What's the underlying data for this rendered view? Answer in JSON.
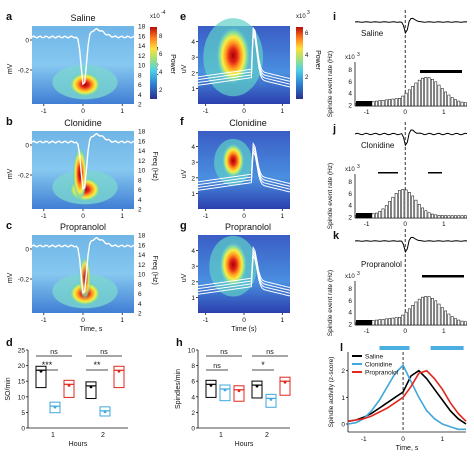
{
  "panels": {
    "a": {
      "letter": "a",
      "title": "Saline"
    },
    "b": {
      "letter": "b",
      "title": "Clonidine"
    },
    "c": {
      "letter": "c",
      "title": "Propranolol"
    },
    "e": {
      "letter": "e",
      "title": "Saline"
    },
    "f": {
      "letter": "f",
      "title": "Clonidine"
    },
    "g": {
      "letter": "g",
      "title": "Propranolol"
    },
    "i": {
      "letter": "i",
      "title": "Saline"
    },
    "j": {
      "letter": "j",
      "title": "Clonidine"
    },
    "k": {
      "letter": "k",
      "title": "Propranolol"
    },
    "d": {
      "letter": "d"
    },
    "h": {
      "letter": "h"
    },
    "l": {
      "letter": "l"
    }
  },
  "labels": {
    "mv": "mV",
    "uv": "uV",
    "freq": "Freq (Hz)",
    "power": "Power",
    "power_exp_a": "x10",
    "power_exp_sup_a": "-4",
    "power_exp_e": "x10",
    "power_exp_sup_e": "3",
    "time_s": "Time, s",
    "time_s_paren": "Time (s)",
    "time_l": "Time, s",
    "hours": "Hours",
    "d_ylabel": "SO/min",
    "h_ylabel": "Spindles/min",
    "spindle_rate": "Spindle event rate (Hz)",
    "x103": "x10",
    "x103_sup": "3",
    "l_ylabel": "Spindle activity (z-score)"
  },
  "colors": {
    "saline": "#000000",
    "clonidine": "#3fa7dc",
    "propranolol": "#e2261c",
    "trace": "#ffffff"
  },
  "chart_data": [
    {
      "panel": "a",
      "type": "heatmap",
      "title": "Saline",
      "x": [
        -1,
        0,
        1
      ],
      "freq_ticks": [
        2,
        4,
        6,
        8,
        10,
        12,
        14,
        16,
        18
      ],
      "mv_ticks": [
        0,
        -0.2
      ],
      "power_ticks": [
        2,
        4,
        6,
        8
      ],
      "power_scale": "x10^-4"
    },
    {
      "panel": "b",
      "type": "heatmap",
      "title": "Clonidine",
      "x": [
        -1,
        0,
        1
      ],
      "freq_ticks": [
        2,
        4,
        6,
        8,
        10,
        12,
        14,
        16,
        18
      ],
      "mv_ticks": [
        0,
        -0.2
      ]
    },
    {
      "panel": "c",
      "type": "heatmap",
      "title": "Propranolol",
      "x": [
        -1,
        0,
        1
      ],
      "freq_ticks": [
        2,
        4,
        6,
        8,
        10,
        12,
        14,
        16,
        18
      ],
      "mv_ticks": [
        0,
        -0.2
      ],
      "xlabel": "Time, s"
    },
    {
      "panel": "e",
      "type": "heatmap",
      "title": "Saline",
      "x": [
        -1,
        0,
        1
      ],
      "uv_ticks": [
        1,
        2,
        3,
        4
      ],
      "power_ticks": [
        2,
        4,
        6
      ],
      "power_scale": "x10^3"
    },
    {
      "panel": "f",
      "type": "heatmap",
      "title": "Clonidine",
      "x": [
        -1,
        0,
        1
      ],
      "uv_ticks": [
        1,
        2,
        3,
        4
      ]
    },
    {
      "panel": "g",
      "type": "heatmap",
      "title": "Propranolol",
      "x": [
        -1,
        0,
        1
      ],
      "uv_ticks": [
        1,
        2,
        3,
        4
      ],
      "xlabel": "Time (s)"
    },
    {
      "panel": "d",
      "type": "bar",
      "ylabel": "SO/min",
      "xlabel": "Hours",
      "categories": [
        "1",
        "2"
      ],
      "ylim": [
        0,
        25
      ],
      "yticks": [
        0,
        5,
        10,
        15,
        20,
        25
      ],
      "series": [
        {
          "name": "Saline",
          "values": [
            18.5,
            13.5
          ]
        },
        {
          "name": "Clonidine",
          "values": [
            7,
            5.5
          ]
        },
        {
          "name": "Propranolol",
          "values": [
            14,
            18.5
          ]
        }
      ],
      "significance": [
        {
          "label": "ns",
          "hour": "1"
        },
        {
          "label": "***",
          "hour": "1"
        },
        {
          "label": "ns",
          "hour": "2"
        },
        {
          "label": "**",
          "hour": "2"
        }
      ]
    },
    {
      "panel": "h",
      "type": "bar",
      "ylabel": "Spindles/min",
      "xlabel": "Hours",
      "categories": [
        "1",
        "2"
      ],
      "ylim": [
        0,
        10
      ],
      "yticks": [
        0,
        2,
        4,
        6,
        8,
        10
      ],
      "series": [
        {
          "name": "Saline",
          "values": [
            5.6,
            5.5
          ]
        },
        {
          "name": "Clonidine",
          "values": [
            5,
            3.8
          ]
        },
        {
          "name": "Propranolol",
          "values": [
            4.9,
            6
          ]
        }
      ],
      "significance": [
        {
          "label": "ns",
          "hour": "1"
        },
        {
          "label": "ns",
          "hour": "1"
        },
        {
          "label": "ns",
          "hour": "2"
        },
        {
          "label": "*",
          "hour": "2"
        }
      ]
    },
    {
      "panel": "i",
      "type": "bar",
      "title": "Saline",
      "ylabel": "Spindle event rate (Hz)",
      "scale": "x10^3",
      "yticks": [
        2,
        4,
        6,
        8
      ],
      "xticks": [
        -1,
        0,
        1
      ]
    },
    {
      "panel": "j",
      "type": "bar",
      "title": "Clonidine",
      "ylabel": "Spindle event rate (Hz)",
      "scale": "x10^3",
      "yticks": [
        2,
        4,
        6,
        8
      ],
      "xticks": [
        -1,
        0,
        1
      ]
    },
    {
      "panel": "k",
      "type": "bar",
      "title": "Propranolol",
      "ylabel": "Spindle event rate (Hz)",
      "scale": "x10^3",
      "yticks": [
        2,
        4,
        6,
        8
      ],
      "xticks": [
        -1,
        0,
        1
      ]
    },
    {
      "panel": "l",
      "type": "line",
      "ylabel": "Spindle activity (z-score)",
      "xlabel": "Time, s",
      "xticks": [
        -1,
        0,
        1
      ],
      "yticks": [
        0,
        1,
        2
      ],
      "ylim": [
        -0.3,
        2.7
      ],
      "xlim": [
        -1.4,
        1.6
      ],
      "legend": [
        "Saline",
        "Clonidine",
        "Propranolol"
      ],
      "legend_position": "top-left",
      "series": [
        {
          "name": "Saline",
          "x": [
            -1.4,
            -1.2,
            -1.0,
            -0.8,
            -0.6,
            -0.4,
            -0.2,
            0,
            0.2,
            0.4,
            0.6,
            0.8,
            1.0,
            1.2,
            1.4,
            1.6
          ],
          "y": [
            0.1,
            0.15,
            0.25,
            0.4,
            0.6,
            0.8,
            1.0,
            1.2,
            1.8,
            2.0,
            1.7,
            1.3,
            0.9,
            0.5,
            0.2,
            0.0
          ]
        },
        {
          "name": "Clonidine",
          "x": [
            -1.4,
            -1.2,
            -1.0,
            -0.8,
            -0.6,
            -0.4,
            -0.2,
            0,
            0.2,
            0.4,
            0.6,
            0.8,
            1.0,
            1.2,
            1.4,
            1.6
          ],
          "y": [
            0.0,
            0.05,
            0.2,
            0.5,
            0.9,
            1.4,
            1.9,
            2.2,
            1.6,
            1.0,
            0.5,
            0.2,
            0.0,
            -0.1,
            -0.2,
            -0.2
          ]
        },
        {
          "name": "Propranolol",
          "x": [
            -1.4,
            -1.2,
            -1.0,
            -0.8,
            -0.6,
            -0.4,
            -0.2,
            0,
            0.2,
            0.4,
            0.6,
            0.8,
            1.0,
            1.2,
            1.4,
            1.6
          ],
          "y": [
            0.1,
            0.15,
            0.2,
            0.3,
            0.45,
            0.6,
            0.8,
            1.0,
            1.4,
            1.9,
            2.0,
            1.7,
            1.3,
            0.8,
            0.4,
            0.1
          ]
        }
      ]
    }
  ]
}
